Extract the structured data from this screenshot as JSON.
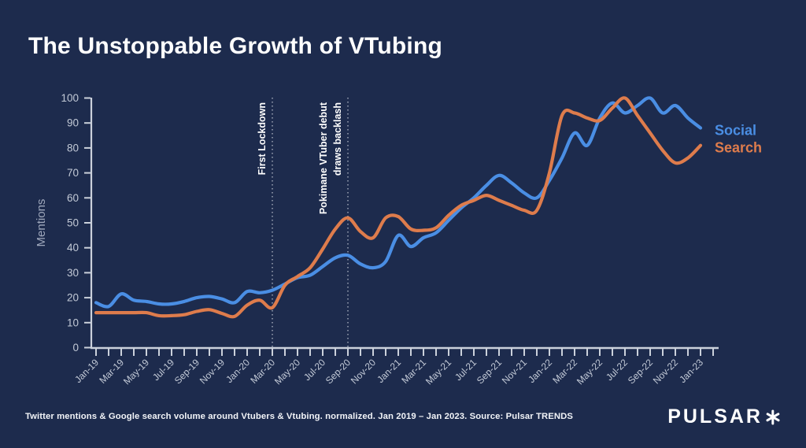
{
  "page": {
    "title": "The Unstoppable Growth of VTubing",
    "footnote": "Twitter mentions & Google search volume around Vtubers & Vtubing. normalized. Jan 2019 – Jan 2023. Source: Pulsar TRENDS",
    "brand": "PULSAR"
  },
  "colors": {
    "background": "#1D2B4D",
    "social": "#4A8EE4",
    "search": "#DE7C4C",
    "axis": "#CBD1DB",
    "tick_label": "#C2C9D6",
    "axis_title": "#9FA8BC",
    "annotation": "#FFFFFF"
  },
  "chart_data": {
    "type": "line",
    "title": "The Unstoppable Growth of VTubing",
    "xlabel": "",
    "ylabel": "Mentions",
    "ylim": [
      0,
      100
    ],
    "yticks": [
      0,
      10,
      20,
      30,
      40,
      50,
      60,
      70,
      80,
      90,
      100
    ],
    "grid": false,
    "legend_position": "right-of-line-ends",
    "x": [
      "Jan-19",
      "Feb-19",
      "Mar-19",
      "Apr-19",
      "May-19",
      "Jun-19",
      "Jul-19",
      "Aug-19",
      "Sep-19",
      "Oct-19",
      "Nov-19",
      "Dec-19",
      "Jan-20",
      "Feb-20",
      "Mar-20",
      "Apr-20",
      "May-20",
      "Jun-20",
      "Jul-20",
      "Aug-20",
      "Sep-20",
      "Oct-20",
      "Nov-20",
      "Dec-20",
      "Jan-21",
      "Feb-21",
      "Mar-21",
      "Apr-21",
      "May-21",
      "Jun-21",
      "Jul-21",
      "Aug-21",
      "Sep-21",
      "Oct-21",
      "Nov-21",
      "Dec-21",
      "Jan-22",
      "Feb-22",
      "Mar-22",
      "Apr-22",
      "May-22",
      "Jun-22",
      "Jul-22",
      "Aug-22",
      "Sep-22",
      "Oct-22",
      "Nov-22",
      "Dec-22",
      "Jan-23"
    ],
    "xtick_label_every": 2,
    "series": [
      {
        "name": "Social",
        "color": "#4A8EE4",
        "values": [
          18,
          16.5,
          21.5,
          19,
          18.5,
          17.5,
          17.5,
          18.5,
          20,
          20.5,
          19.5,
          18,
          22.5,
          22,
          23,
          25.5,
          28,
          29,
          32.5,
          36,
          37,
          33.5,
          32,
          34.5,
          45,
          40.5,
          44,
          46,
          51,
          56,
          60,
          65,
          69,
          66,
          62,
          60,
          67,
          76,
          86,
          81,
          92,
          98,
          94,
          97,
          100,
          94,
          97,
          92,
          88
        ]
      },
      {
        "name": "Search",
        "color": "#DE7C4C",
        "values": [
          14,
          14,
          14,
          14,
          14,
          12.8,
          12.8,
          13.2,
          14.5,
          15.2,
          13.7,
          12.5,
          17,
          19,
          16,
          25,
          28.5,
          32,
          39.5,
          47.5,
          52,
          46.5,
          44,
          52,
          52.5,
          47.5,
          47,
          48,
          53,
          57,
          59,
          61,
          59,
          57,
          55,
          55,
          70,
          93,
          94,
          92,
          91,
          96,
          100,
          93,
          86,
          79,
          74,
          76,
          81
        ]
      }
    ],
    "annotations": [
      {
        "x": "Mar-20",
        "lines": [
          "First Lockdown"
        ]
      },
      {
        "x": "Sep-20",
        "lines": [
          "Pokimane VTuber debut",
          "draws backlash"
        ]
      }
    ]
  }
}
